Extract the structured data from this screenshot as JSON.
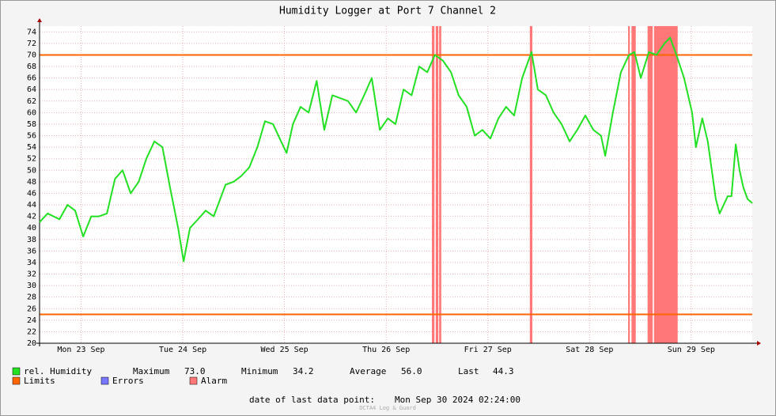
{
  "chart_data": {
    "type": "line",
    "title": "Humidity Logger at Port 7 Channel 2",
    "x": [
      2.2,
      4.1,
      6.9,
      8.8,
      10.6,
      12.5,
      14.4,
      16.2,
      18.1,
      20.0,
      21.8,
      23.7,
      25.6,
      27.4,
      29.3,
      31.2,
      33.0,
      34.9,
      36.2,
      37.7,
      39.6,
      41.4,
      43.3,
      46.1,
      48.0,
      49.8,
      51.7,
      53.6,
      55.4,
      57.3,
      59.2,
      60.5,
      62.0,
      63.8,
      65.7,
      67.6,
      69.4,
      71.3,
      73.2,
      75.0,
      76.9,
      78.8,
      80.6,
      82.5,
      84.4,
      86.2,
      88.1,
      90.0,
      91.8,
      93.7,
      95.5,
      97.4,
      99.3,
      101.1,
      103.0,
      104.9,
      106.7,
      108.6,
      110.5,
      112.3,
      114.2,
      116.1,
      118.3,
      119.8,
      121.7,
      123.5,
      125.4,
      127.3,
      129.1,
      131.0,
      132.9,
      134.7,
      135.7,
      137.5,
      139.4,
      141.3,
      142.6,
      144.1,
      146.0,
      147.8,
      149.7,
      151.0,
      152.5,
      154.3,
      156.2,
      157.1,
      158.6,
      159.9,
      161.8,
      162.7,
      164.6,
      165.5,
      166.5,
      167.4,
      168.3,
      169.3,
      170.4
    ],
    "series": [
      {
        "name": "rel. Humidity",
        "color": "#22e022",
        "values": [
          41,
          42.5,
          41.5,
          44,
          43,
          38.5,
          42,
          42,
          42.5,
          48.5,
          50,
          46,
          48,
          52,
          55,
          54,
          47,
          40,
          34.2,
          40,
          41.5,
          43,
          42,
          47.5,
          48,
          49,
          50.5,
          54,
          58.5,
          58,
          55,
          53,
          58,
          61,
          60,
          65.5,
          57,
          63,
          62.5,
          62,
          60,
          63,
          66,
          57,
          59,
          58,
          64,
          63,
          68,
          67,
          70,
          69,
          67,
          63,
          61,
          56,
          57,
          55.5,
          59,
          61,
          59.5,
          66,
          70.5,
          64,
          63,
          60,
          58,
          55,
          57,
          59.5,
          57,
          56,
          52.5,
          60,
          67,
          70,
          70.5,
          66,
          70.5,
          70,
          72,
          73,
          70,
          66,
          60,
          54,
          59,
          55,
          45,
          42.5,
          45.5,
          45.5,
          54.5,
          50,
          47,
          45,
          44.3
        ]
      }
    ],
    "limits": {
      "name": "Limits",
      "color": "#ff6600",
      "values": [
        70,
        25
      ]
    },
    "errors": {
      "name": "Errors",
      "color": "#7777ff"
    },
    "alarm": {
      "name": "Alarm",
      "color": "#ff7777",
      "ranges": [
        [
          94.8,
          95.4
        ],
        [
          95.7,
          96.3
        ],
        [
          96.5,
          97.0
        ],
        [
          117.9,
          118.5
        ],
        [
          141.1,
          141.5
        ],
        [
          141.9,
          142.9
        ],
        [
          145.7,
          146.9
        ],
        [
          147.2,
          152.8
        ]
      ]
    },
    "stats": {
      "names": [
        "Maximum",
        "Minimum",
        "Average",
        "Last"
      ],
      "values": [
        73,
        34.2,
        56,
        44.3
      ],
      "value_labels": [
        "73.0",
        "34.2",
        "56.0",
        "44.3"
      ]
    },
    "footer": {
      "label": "date of last data point:",
      "date": "Mon Sep 30 2024 02:24:00"
    },
    "watermark": "OCTA4 Log & Guard",
    "xlim": [
      2.2,
      170.4
    ],
    "xticks": [
      {
        "value": 12,
        "label": "Mon 23 Sep"
      },
      {
        "value": 36,
        "label": "Tue 24 Sep"
      },
      {
        "value": 60,
        "label": "Wed 25 Sep"
      },
      {
        "value": 84,
        "label": "Thu 26 Sep"
      },
      {
        "value": 108,
        "label": "Fri 27 Sep"
      },
      {
        "value": 132,
        "label": "Sat 28 Sep"
      },
      {
        "value": 156,
        "label": "Sun 29 Sep"
      }
    ],
    "ylim": [
      20,
      75
    ],
    "yticks": [
      20,
      22,
      24,
      26,
      28,
      30,
      32,
      34,
      36,
      38,
      40,
      42,
      44,
      46,
      48,
      50,
      52,
      54,
      56,
      58,
      60,
      62,
      64,
      66,
      68,
      70,
      72,
      74
    ],
    "grid": true
  }
}
